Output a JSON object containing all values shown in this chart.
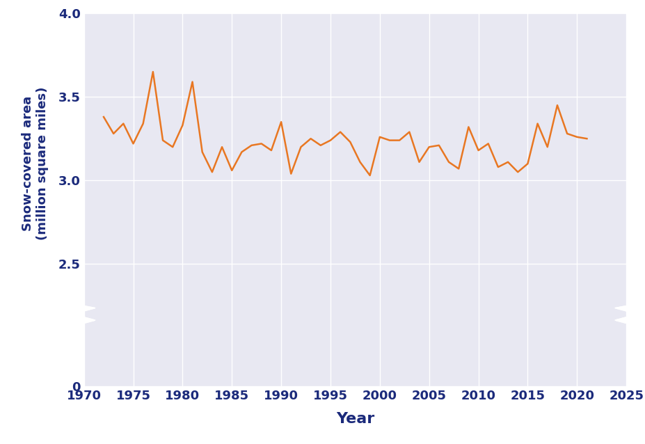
{
  "years": [
    1972,
    1973,
    1974,
    1975,
    1976,
    1977,
    1978,
    1979,
    1980,
    1981,
    1982,
    1983,
    1984,
    1985,
    1986,
    1987,
    1988,
    1989,
    1990,
    1991,
    1992,
    1993,
    1994,
    1995,
    1996,
    1997,
    1998,
    1999,
    2000,
    2001,
    2002,
    2003,
    2004,
    2005,
    2006,
    2007,
    2008,
    2009,
    2010,
    2011,
    2012,
    2013,
    2014,
    2015,
    2016,
    2017,
    2018,
    2019,
    2020,
    2021
  ],
  "values": [
    3.38,
    3.28,
    3.34,
    3.22,
    3.34,
    3.65,
    3.24,
    3.2,
    3.33,
    3.59,
    3.17,
    3.05,
    3.2,
    3.06,
    3.17,
    3.21,
    3.22,
    3.18,
    3.35,
    3.04,
    3.2,
    3.25,
    3.21,
    3.24,
    3.29,
    3.23,
    3.11,
    3.03,
    3.26,
    3.24,
    3.24,
    3.29,
    3.11,
    3.2,
    3.21,
    3.11,
    3.07,
    3.32,
    3.18,
    3.22,
    3.08,
    3.11,
    3.05,
    3.1,
    3.34,
    3.2,
    3.45,
    3.28,
    3.26,
    3.25
  ],
  "line_color": "#E87722",
  "line_width": 1.8,
  "bg_color": "#E8E8F2",
  "fig_bg_color": "#FFFFFF",
  "xlabel": "Year",
  "ylabel": "Snow-covered area\n(million square miles)",
  "xlabel_fontsize": 16,
  "ylabel_fontsize": 13,
  "tick_fontsize": 13,
  "label_color": "#1B2A7B",
  "xlim": [
    1970,
    2025
  ],
  "ylim": [
    0,
    4.0
  ],
  "yticks": [
    0,
    2.5,
    3.0,
    3.5,
    4.0
  ],
  "ytick_labels": [
    "0",
    "2.5",
    "3.0",
    "3.5",
    "4.0"
  ],
  "xticks": [
    1970,
    1975,
    1980,
    1985,
    1990,
    1995,
    2000,
    2005,
    2010,
    2015,
    2020,
    2025
  ],
  "grid_color": "#FFFFFF",
  "grid_linewidth": 1.0,
  "break_y_low": 0.0,
  "break_y_high": 2.2,
  "notch_color": "#FFFFFF"
}
